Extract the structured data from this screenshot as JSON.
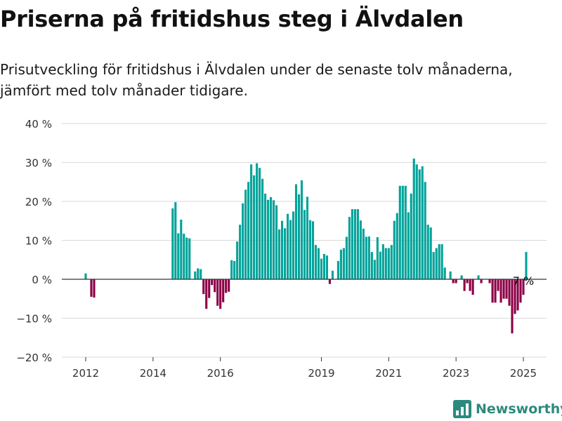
{
  "title": "Priserna på fritidshus steg i Älvdalen",
  "subtitle": "Prisutveckling för fritidshus i Älvdalen under de senaste tolv månaderna, jämfört med tolv månader tidigare.",
  "brand": {
    "name": "Newsworthy",
    "icon": "newsworthy-logo-icon"
  },
  "colors": {
    "positive": "#00a39a",
    "negative": "#8b0046",
    "grid": "#d9d9d9",
    "zero_line": "#333333"
  },
  "chart_data": {
    "type": "bar",
    "title": "Priserna på fritidshus steg i Älvdalen",
    "xlabel": "",
    "ylabel": "",
    "ylim": [
      -20,
      40
    ],
    "y_ticks": [
      -20,
      -10,
      0,
      10,
      20,
      30,
      40
    ],
    "y_tick_labels": [
      "−20 %",
      "−10 %",
      "0 %",
      "10 %",
      "20 %",
      "30 %",
      "40 %"
    ],
    "x_ticks": [
      2012,
      2014,
      2016,
      2019,
      2021,
      2023,
      2025
    ],
    "x_tick_labels": [
      "2012",
      "2014",
      "2016",
      "2019",
      "2021",
      "2023",
      "2025"
    ],
    "grid": true,
    "annotation": {
      "text": "7 %",
      "month": "2025-01"
    },
    "series": [
      {
        "values": [
          [
            "2012-01",
            1.5
          ],
          [
            "2012-02",
            0
          ],
          [
            "2012-03",
            -4.5
          ],
          [
            "2012-04",
            -4.7
          ],
          [
            "2014-08",
            18.2
          ],
          [
            "2014-09",
            19.8
          ],
          [
            "2014-10",
            11.8
          ],
          [
            "2014-11",
            15.3
          ],
          [
            "2014-12",
            11.7
          ],
          [
            "2015-01",
            10.7
          ],
          [
            "2015-02",
            10.5
          ],
          [
            "2015-03",
            0
          ],
          [
            "2015-04",
            2.0
          ],
          [
            "2015-05",
            2.8
          ],
          [
            "2015-06",
            2.6
          ],
          [
            "2015-07",
            -3.8
          ],
          [
            "2015-08",
            -7.6
          ],
          [
            "2015-09",
            -4.8
          ],
          [
            "2015-10",
            -1.5
          ],
          [
            "2015-11",
            -3.3
          ],
          [
            "2015-12",
            -6.8
          ],
          [
            "2016-01",
            -7.6
          ],
          [
            "2016-02",
            -5.9
          ],
          [
            "2016-03",
            -3.5
          ],
          [
            "2016-04",
            -3.2
          ],
          [
            "2016-05",
            4.9
          ],
          [
            "2016-06",
            4.7
          ],
          [
            "2016-07",
            9.7
          ],
          [
            "2016-08",
            14.0
          ],
          [
            "2016-09",
            19.5
          ],
          [
            "2016-10",
            23.0
          ],
          [
            "2016-11",
            25.0
          ],
          [
            "2016-12",
            29.5
          ],
          [
            "2017-01",
            26.7
          ],
          [
            "2017-02",
            29.8
          ],
          [
            "2017-03",
            28.6
          ],
          [
            "2017-04",
            25.8
          ],
          [
            "2017-05",
            22.0
          ],
          [
            "2017-06",
            20.4
          ],
          [
            "2017-07",
            21.1
          ],
          [
            "2017-08",
            20.3
          ],
          [
            "2017-09",
            19.0
          ],
          [
            "2017-10",
            12.8
          ],
          [
            "2017-11",
            15.0
          ],
          [
            "2017-12",
            13.1
          ],
          [
            "2018-01",
            16.8
          ],
          [
            "2018-02",
            15.2
          ],
          [
            "2018-03",
            17.4
          ],
          [
            "2018-04",
            24.4
          ],
          [
            "2018-05",
            21.8
          ],
          [
            "2018-06",
            25.4
          ],
          [
            "2018-07",
            17.8
          ],
          [
            "2018-08",
            21.2
          ],
          [
            "2018-09",
            15.2
          ],
          [
            "2018-10",
            14.9
          ],
          [
            "2018-11",
            8.8
          ],
          [
            "2018-12",
            8.0
          ],
          [
            "2019-01",
            5.3
          ],
          [
            "2019-02",
            6.5
          ],
          [
            "2019-03",
            6.1
          ],
          [
            "2019-04",
            -1.2
          ],
          [
            "2019-05",
            2.2
          ],
          [
            "2019-06",
            0
          ],
          [
            "2019-07",
            4.7
          ],
          [
            "2019-08",
            7.6
          ],
          [
            "2019-09",
            8.0
          ],
          [
            "2019-10",
            10.9
          ],
          [
            "2019-11",
            16.0
          ],
          [
            "2019-12",
            18.0
          ],
          [
            "2020-01",
            18.0
          ],
          [
            "2020-02",
            18.0
          ],
          [
            "2020-03",
            15.1
          ],
          [
            "2020-04",
            13.0
          ],
          [
            "2020-05",
            10.9
          ],
          [
            "2020-06",
            11.0
          ],
          [
            "2020-07",
            7.0
          ],
          [
            "2020-08",
            5.0
          ],
          [
            "2020-09",
            10.8
          ],
          [
            "2020-10",
            7.1
          ],
          [
            "2020-11",
            9.0
          ],
          [
            "2020-12",
            8.0
          ],
          [
            "2021-01",
            8.0
          ],
          [
            "2021-02",
            8.8
          ],
          [
            "2021-03",
            15.0
          ],
          [
            "2021-04",
            17.0
          ],
          [
            "2021-05",
            24.0
          ],
          [
            "2021-06",
            24.0
          ],
          [
            "2021-07",
            24.0
          ],
          [
            "2021-08",
            17.2
          ],
          [
            "2021-09",
            22.0
          ],
          [
            "2021-10",
            31.0
          ],
          [
            "2021-11",
            29.5
          ],
          [
            "2021-12",
            28.2
          ],
          [
            "2022-01",
            29.0
          ],
          [
            "2022-02",
            25.0
          ],
          [
            "2022-03",
            14.0
          ],
          [
            "2022-04",
            13.3
          ],
          [
            "2022-05",
            7.0
          ],
          [
            "2022-06",
            8.0
          ],
          [
            "2022-07",
            9.0
          ],
          [
            "2022-08",
            9.0
          ],
          [
            "2022-09",
            3.0
          ],
          [
            "2022-10",
            0
          ],
          [
            "2022-11",
            2.0
          ],
          [
            "2022-12",
            -1.0
          ],
          [
            "2023-01",
            -1.0
          ],
          [
            "2023-02",
            0
          ],
          [
            "2023-03",
            1.0
          ],
          [
            "2023-04",
            -3.0
          ],
          [
            "2023-05",
            -1.0
          ],
          [
            "2023-06",
            -3.0
          ],
          [
            "2023-07",
            -4.0
          ],
          [
            "2023-08",
            0
          ],
          [
            "2023-09",
            1.0
          ],
          [
            "2023-10",
            -1.0
          ],
          [
            "2023-11",
            0
          ],
          [
            "2023-12",
            0
          ],
          [
            "2024-01",
            -1.0
          ],
          [
            "2024-02",
            -6.0
          ],
          [
            "2024-03",
            -6.0
          ],
          [
            "2024-04",
            -3.0
          ],
          [
            "2024-05",
            -6.0
          ],
          [
            "2024-06",
            -5.0
          ],
          [
            "2024-07",
            -5.0
          ],
          [
            "2024-08",
            -6.8
          ],
          [
            "2024-09",
            -13.9
          ],
          [
            "2024-10",
            -8.9
          ],
          [
            "2024-11",
            -8.0
          ],
          [
            "2024-12",
            -6.0
          ],
          [
            "2025-01",
            -4.0
          ],
          [
            "2025-02",
            7.0
          ]
        ]
      }
    ]
  }
}
